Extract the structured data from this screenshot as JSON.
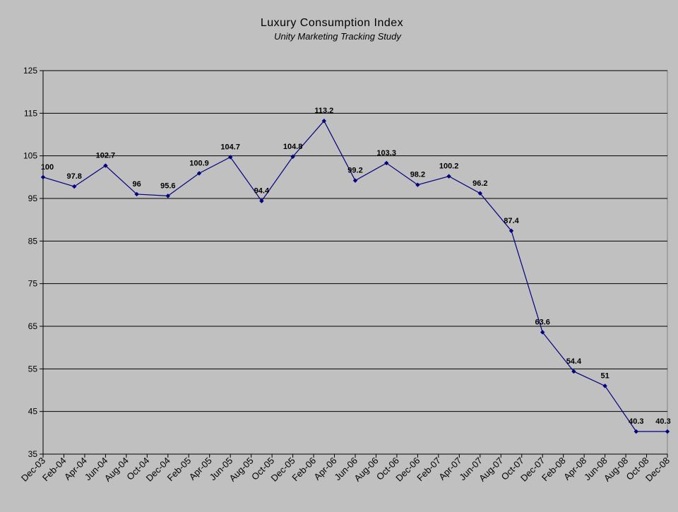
{
  "chart_data": {
    "type": "line",
    "title": "Luxury Consumption Index",
    "subtitle": "Unity Marketing Tracking Study",
    "xlabel": "",
    "ylabel": "",
    "ylim": [
      35,
      125
    ],
    "yticks": [
      "35",
      "45",
      "55",
      "65",
      "75",
      "85",
      "95",
      "105",
      "115",
      "125"
    ],
    "categories": [
      "Dec-03",
      "Feb-04",
      "Apr-04",
      "Jun-04",
      "Aug-04",
      "Oct-04",
      "Dec-04",
      "Feb-05",
      "Apr-05",
      "Jun-05",
      "Aug-05",
      "Oct-05",
      "Dec-05",
      "Feb-06",
      "Apr-06",
      "Jun-06",
      "Aug-06",
      "Oct-06",
      "Dec-06",
      "Feb-07",
      "Apr-07",
      "Jun-07",
      "Aug-07",
      "Oct-07",
      "Dec-07",
      "Feb-08",
      "Apr-08",
      "Jun-08",
      "Aug-08",
      "Oct-08",
      "Dec-08"
    ],
    "grid": true,
    "legend": "none",
    "series": [
      {
        "color": "#000080",
        "points": [
          {
            "x": "Dec-03",
            "y": 100,
            "label": "100"
          },
          {
            "x": "Mar-04",
            "y": 97.8,
            "label": "97.8"
          },
          {
            "x": "Jun-04",
            "y": 102.7,
            "label": "102.7"
          },
          {
            "x": "Sep-04",
            "y": 96,
            "label": "96"
          },
          {
            "x": "Dec-04",
            "y": 95.6,
            "label": "95.6"
          },
          {
            "x": "Mar-05",
            "y": 100.9,
            "label": "100.9"
          },
          {
            "x": "Jun-05",
            "y": 104.7,
            "label": "104.7"
          },
          {
            "x": "Sep-05",
            "y": 94.4,
            "label": "94.4"
          },
          {
            "x": "Dec-05",
            "y": 104.8,
            "label": "104.8"
          },
          {
            "x": "Mar-06",
            "y": 113.2,
            "label": "113.2"
          },
          {
            "x": "Jun-06",
            "y": 99.2,
            "label": "99.2"
          },
          {
            "x": "Sep-06",
            "y": 103.3,
            "label": "103.3"
          },
          {
            "x": "Dec-06",
            "y": 98.2,
            "label": "98.2"
          },
          {
            "x": "Mar-07",
            "y": 100.2,
            "label": "100.2"
          },
          {
            "x": "Jun-07",
            "y": 96.2,
            "label": "96.2"
          },
          {
            "x": "Sep-07",
            "y": 87.4,
            "label": "87.4"
          },
          {
            "x": "Dec-07",
            "y": 63.6,
            "label": "63.6"
          },
          {
            "x": "Mar-08",
            "y": 54.4,
            "label": "54.4"
          },
          {
            "x": "Jun-08",
            "y": 51,
            "label": "51"
          },
          {
            "x": "Sep-08",
            "y": 40.3,
            "label": "40.3"
          },
          {
            "x": "Dec-08",
            "y": 40.3,
            "label": "40.3"
          }
        ]
      }
    ]
  }
}
